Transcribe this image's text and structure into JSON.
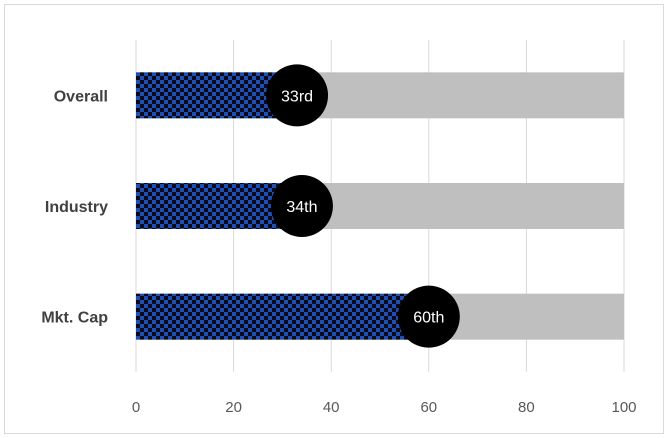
{
  "chart_data": {
    "type": "bar",
    "orientation": "horizontal",
    "categories": [
      "Overall",
      "Industry",
      "Mkt. Cap"
    ],
    "series": [
      {
        "values": [
          33,
          34,
          60
        ]
      }
    ],
    "marker_labels": [
      "33rd",
      "34th",
      "60th"
    ],
    "background_max": 100,
    "xlim": [
      0,
      100
    ],
    "x_ticks": [
      0,
      20,
      40,
      60,
      80,
      100
    ],
    "grid": true,
    "legend": "none",
    "colors": {
      "bar_pattern_dark": "#0a0a1f",
      "bar_pattern_blue": "#1f4fb0",
      "background_bar": "#bfbfbf",
      "marker": "#000000",
      "marker_text": "#ffffff",
      "grid": "#d9d9d9"
    }
  }
}
